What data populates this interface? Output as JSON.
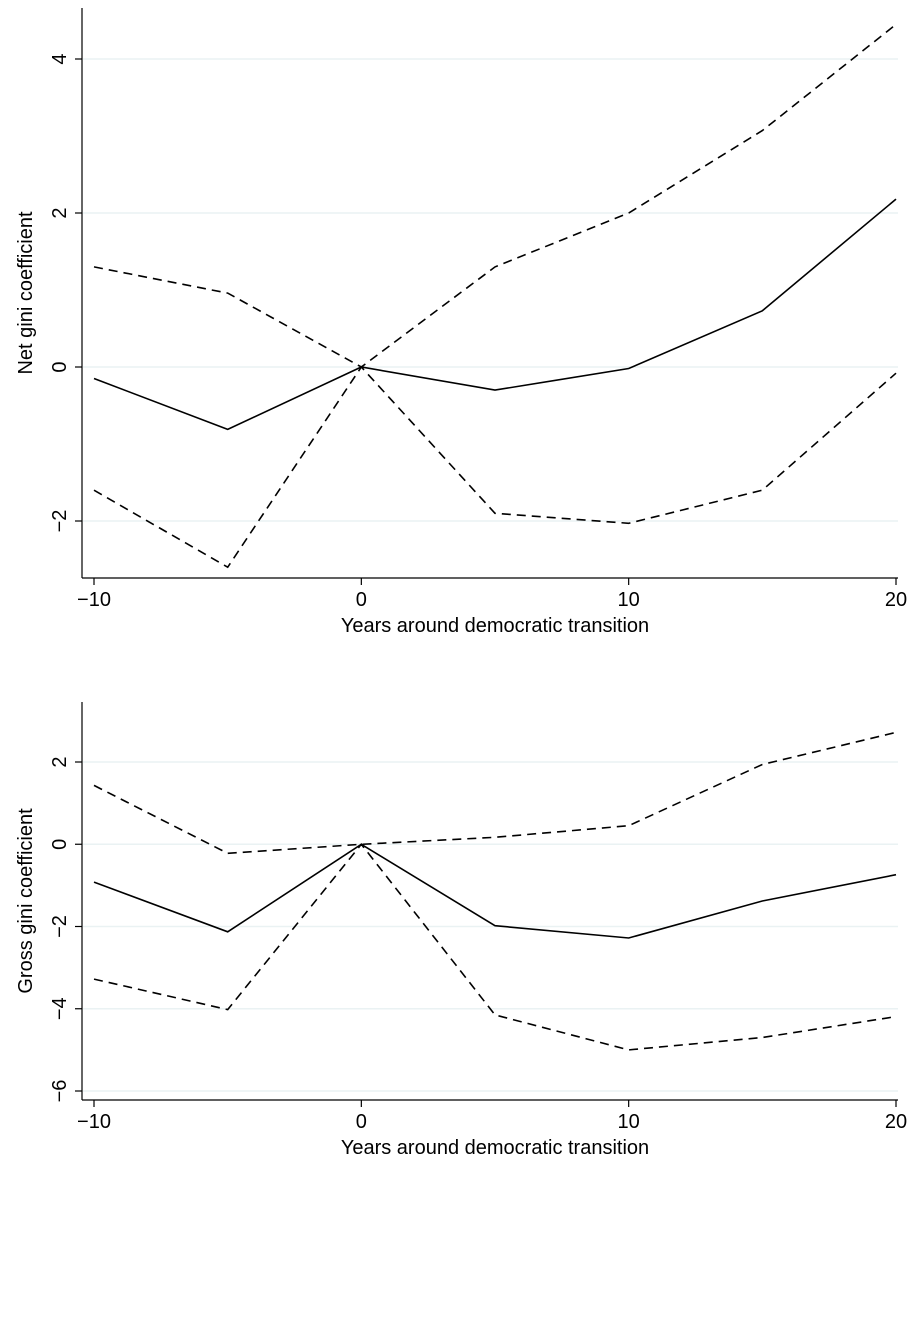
{
  "chart_data": [
    {
      "type": "line",
      "title": "",
      "xlabel": "Years around democratic transition",
      "ylabel": "Net gini coefficient",
      "x": [
        -10,
        -5,
        0,
        5,
        10,
        15,
        20
      ],
      "xticks": [
        -10,
        0,
        10,
        20
      ],
      "xtick_labels": [
        "−10",
        "0",
        "10",
        "20"
      ],
      "yticks": [
        -2,
        0,
        2,
        4
      ],
      "ytick_labels": [
        "−2",
        "0",
        "2",
        "4"
      ],
      "xlim": [
        -10,
        20
      ],
      "ylim": [
        -2.7,
        4.6
      ],
      "grid": true,
      "legend": "none",
      "series": [
        {
          "role": "estimate",
          "style": "solid",
          "values": [
            -0.15,
            -0.81,
            0,
            -0.3,
            -0.02,
            0.73,
            2.18
          ]
        },
        {
          "role": "upper",
          "style": "dashed",
          "values": [
            1.3,
            0.96,
            0,
            1.3,
            2.0,
            3.07,
            4.45
          ]
        },
        {
          "role": "lower",
          "style": "dashed",
          "values": [
            -1.6,
            -2.6,
            0,
            -1.9,
            -2.03,
            -1.6,
            -0.08
          ]
        }
      ]
    },
    {
      "type": "line",
      "title": "",
      "xlabel": "Years around democratic transition",
      "ylabel": "Gross gini coefficient",
      "x": [
        -10,
        -5,
        0,
        5,
        10,
        15,
        20
      ],
      "xticks": [
        -10,
        0,
        10,
        20
      ],
      "xtick_labels": [
        "−10",
        "0",
        "10",
        "20"
      ],
      "yticks": [
        -6,
        -4,
        -2,
        0,
        2
      ],
      "ytick_labels": [
        "−6",
        "−4",
        "−2",
        "0",
        "2"
      ],
      "xlim": [
        -10,
        20
      ],
      "ylim": [
        -6.2,
        3.0
      ],
      "grid": true,
      "legend": "none",
      "series": [
        {
          "role": "estimate",
          "style": "solid",
          "values": [
            -0.92,
            -2.13,
            0,
            -1.98,
            -2.28,
            -1.38,
            -0.74
          ]
        },
        {
          "role": "upper",
          "style": "dashed",
          "values": [
            1.43,
            -0.22,
            0,
            0.17,
            0.45,
            1.94,
            2.72
          ]
        },
        {
          "role": "lower",
          "style": "dashed",
          "values": [
            -3.28,
            -4.02,
            0,
            -4.15,
            -5.0,
            -4.7,
            -4.19
          ]
        }
      ]
    }
  ]
}
